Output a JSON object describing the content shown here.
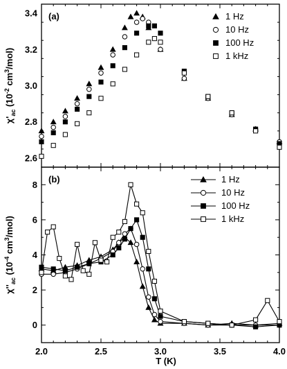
{
  "chart_data": [
    {
      "type": "scatter",
      "panel_label": "(a)",
      "ylabel": {
        "main": "χ'",
        "sub": "ac",
        "rest": " (10",
        "sup": "-2",
        "rest2": " cm",
        "sup2": "3",
        "rest3": "/mol)"
      },
      "xlim": [
        2.0,
        4.0
      ],
      "ylim": [
        2.55,
        3.45
      ],
      "yticks": [
        "2.6",
        "2.8",
        "3.0",
        "3.2",
        "3.4"
      ],
      "legend_position": "top-right",
      "lines": false,
      "series": [
        {
          "name": "1 Hz",
          "marker": "triangle-filled",
          "x": [
            2.0,
            2.1,
            2.2,
            2.3,
            2.4,
            2.5,
            2.6,
            2.7,
            2.75,
            2.8,
            2.85,
            2.9,
            3.0,
            3.2,
            3.4,
            3.6,
            3.8,
            4.0
          ],
          "y": [
            2.75,
            2.8,
            2.86,
            2.93,
            3.01,
            3.1,
            3.2,
            3.32,
            3.38,
            3.4,
            3.38,
            3.32,
            3.2,
            3.04,
            2.93,
            2.84,
            2.76,
            2.69
          ]
        },
        {
          "name": "10 Hz",
          "marker": "circle-open",
          "x": [
            2.0,
            2.1,
            2.2,
            2.3,
            2.4,
            2.5,
            2.6,
            2.7,
            2.8,
            2.85,
            2.9,
            3.0,
            3.2,
            3.4,
            3.6,
            3.8,
            4.0
          ],
          "y": [
            2.72,
            2.77,
            2.83,
            2.9,
            2.98,
            3.07,
            3.17,
            3.27,
            3.35,
            3.37,
            3.35,
            3.2,
            3.04,
            2.93,
            2.84,
            2.76,
            2.69
          ]
        },
        {
          "name": "100 Hz",
          "marker": "square-filled",
          "x": [
            2.0,
            2.1,
            2.2,
            2.3,
            2.4,
            2.5,
            2.6,
            2.7,
            2.8,
            2.9,
            2.95,
            3.0,
            3.2,
            3.4,
            3.6,
            3.8,
            4.0
          ],
          "y": [
            2.69,
            2.74,
            2.8,
            2.87,
            2.94,
            3.02,
            3.11,
            3.21,
            3.29,
            3.33,
            3.33,
            3.29,
            3.08,
            2.94,
            2.85,
            2.76,
            2.68
          ]
        },
        {
          "name": "1 kHz",
          "marker": "square-open",
          "x": [
            2.0,
            2.1,
            2.2,
            2.3,
            2.4,
            2.5,
            2.6,
            2.7,
            2.8,
            2.9,
            2.95,
            3.0,
            3.2,
            3.4,
            3.6,
            3.8,
            4.0
          ],
          "y": [
            2.61,
            2.67,
            2.73,
            2.79,
            2.85,
            2.93,
            3.01,
            3.09,
            3.17,
            3.24,
            3.26,
            3.24,
            3.07,
            2.94,
            2.85,
            2.75,
            2.66
          ]
        }
      ]
    },
    {
      "type": "line",
      "panel_label": "(b)",
      "xlabel": "T (K)",
      "ylabel": {
        "main": "χ''",
        "sub": "ac",
        "rest": " (10",
        "sup": "-4",
        "rest2": " cm",
        "sup2": "3",
        "rest3": "/mol)"
      },
      "xlim": [
        2.0,
        4.0
      ],
      "ylim": [
        -1.0,
        9.0
      ],
      "xticks": [
        "2.0",
        "2.5",
        "3.0",
        "3.5",
        "4.0"
      ],
      "yticks": [
        "0",
        "2",
        "4",
        "6",
        "8"
      ],
      "legend_position": "top-right",
      "lines": true,
      "series": [
        {
          "name": "1 Hz",
          "marker": "triangle-filled",
          "x": [
            2.0,
            2.1,
            2.2,
            2.3,
            2.4,
            2.5,
            2.6,
            2.65,
            2.7,
            2.75,
            2.8,
            2.85,
            2.9,
            2.95,
            3.0,
            3.2,
            3.4,
            3.6,
            3.8,
            4.0
          ],
          "y": [
            3.2,
            3.1,
            3.3,
            3.4,
            3.7,
            3.9,
            4.3,
            4.7,
            5.0,
            4.7,
            3.6,
            2.2,
            1.0,
            0.3,
            0.1,
            0.1,
            0.0,
            0.1,
            0.0,
            0.1
          ]
        },
        {
          "name": "10 Hz",
          "marker": "circle-open",
          "x": [
            2.0,
            2.1,
            2.2,
            2.3,
            2.4,
            2.5,
            2.6,
            2.65,
            2.7,
            2.75,
            2.8,
            2.85,
            2.9,
            2.95,
            3.0,
            3.2,
            3.4,
            3.6,
            3.8,
            4.0
          ],
          "y": [
            2.9,
            2.9,
            3.0,
            3.2,
            3.5,
            3.8,
            4.2,
            4.7,
            5.2,
            5.5,
            4.6,
            3.2,
            1.6,
            0.6,
            0.2,
            0.1,
            0.0,
            0.0,
            0.0,
            0.0
          ]
        },
        {
          "name": "100 Hz",
          "marker": "square-filled",
          "x": [
            2.0,
            2.1,
            2.2,
            2.3,
            2.4,
            2.5,
            2.6,
            2.65,
            2.7,
            2.75,
            2.8,
            2.85,
            2.9,
            2.95,
            3.0,
            3.2,
            3.4,
            3.6,
            3.8,
            4.0
          ],
          "y": [
            3.3,
            3.2,
            3.1,
            3.3,
            3.5,
            3.6,
            4.0,
            4.4,
            4.9,
            5.5,
            6.0,
            5.0,
            3.2,
            1.5,
            0.5,
            0.2,
            0.1,
            0.0,
            -0.1,
            0.0
          ]
        },
        {
          "name": "1 kHz",
          "marker": "square-open",
          "x": [
            2.0,
            2.05,
            2.1,
            2.15,
            2.2,
            2.25,
            2.3,
            2.35,
            2.4,
            2.45,
            2.5,
            2.55,
            2.6,
            2.65,
            2.7,
            2.75,
            2.8,
            2.85,
            2.9,
            2.95,
            3.0,
            3.2,
            3.4,
            3.6,
            3.8,
            3.9,
            4.0
          ],
          "y": [
            3.0,
            5.3,
            5.6,
            3.8,
            2.8,
            2.6,
            4.6,
            3.1,
            2.9,
            4.7,
            3.7,
            3.6,
            5.0,
            5.3,
            5.9,
            8.0,
            6.9,
            6.4,
            4.2,
            2.5,
            0.8,
            0.2,
            0.1,
            0.0,
            0.3,
            1.4,
            0.2
          ]
        }
      ]
    }
  ]
}
